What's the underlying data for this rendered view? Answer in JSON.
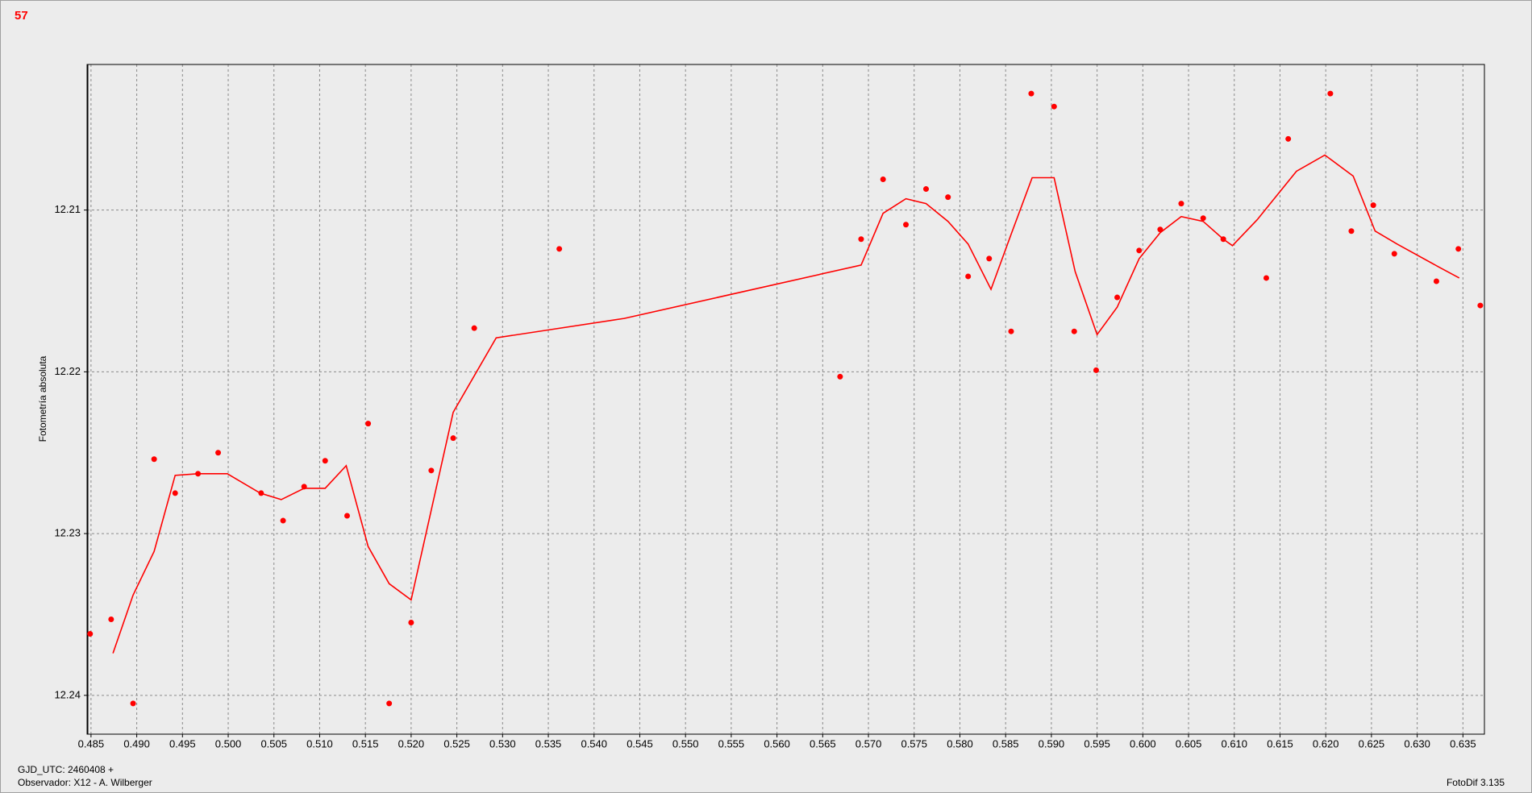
{
  "chart_data": {
    "type": "scatter",
    "title": "57",
    "y_label": "Fotometría absoluta",
    "footer_left": [
      "GJD_UTC: 2460408 +",
      "Observador: X12 - A. Wilberger"
    ],
    "footer_right": "FotoDif 3.135",
    "xlim": [
      0.48457,
      0.63735
    ],
    "ylim": [
      12.2424,
      12.201
    ],
    "xticks": [
      0.485,
      {
        "value": 0.49,
        "label": "0.490"
      },
      0.495,
      {
        "value": 0.5,
        "label": "0.500"
      },
      0.505,
      {
        "value": 0.51,
        "label": "0.510"
      },
      0.515,
      {
        "value": 0.52,
        "label": "0.520"
      },
      0.525,
      {
        "value": 0.53,
        "label": "0.530"
      },
      0.535,
      {
        "value": 0.54,
        "label": "0.540"
      },
      0.545,
      {
        "value": 0.55,
        "label": "0.550"
      },
      0.555,
      {
        "value": 0.56,
        "label": "0.560"
      },
      0.565,
      {
        "value": 0.57,
        "label": "0.570"
      },
      0.575,
      {
        "value": 0.58,
        "label": "0.580"
      },
      0.585,
      {
        "value": 0.59,
        "label": "0.590"
      },
      0.595,
      {
        "value": 0.6,
        "label": "0.600"
      },
      0.605,
      {
        "value": 0.61,
        "label": "0.610"
      },
      0.615,
      {
        "value": 0.62,
        "label": "0.620"
      },
      0.625,
      {
        "value": 0.63,
        "label": "0.630"
      },
      0.635
    ],
    "yticks": [
      12.21,
      12.22,
      12.23,
      12.24
    ],
    "grid": true,
    "series": [
      {
        "type": "scatter",
        "color": "#ff0000",
        "x": [
          0.4849,
          0.4872,
          0.4896,
          0.4919,
          0.4942,
          0.4967,
          0.4989,
          0.5036,
          0.506,
          0.5083,
          0.5106,
          0.513,
          0.5153,
          0.5176,
          0.52,
          0.5222,
          0.5246,
          0.5269,
          0.5362,
          0.5669,
          0.5692,
          0.5716,
          0.5741,
          0.5763,
          0.5787,
          0.5809,
          0.5832,
          0.5856,
          0.5878,
          0.5903,
          0.5925,
          0.5949,
          0.5972,
          0.5996,
          0.6019,
          0.6042,
          0.6066,
          0.6088,
          0.6135,
          0.6159,
          0.6205,
          0.6228,
          0.6252,
          0.6275,
          0.6321,
          0.6345,
          0.6369
        ],
        "values": [
          12.2362,
          12.2353,
          12.2405,
          12.2254,
          12.2275,
          12.2263,
          12.225,
          12.2275,
          12.2292,
          12.2271,
          12.2255,
          12.2289,
          12.2232,
          12.2405,
          12.2355,
          12.2261,
          12.2241,
          12.2173,
          12.2124,
          12.2203,
          12.2118,
          12.2081,
          12.2109,
          12.2087,
          12.2092,
          12.2141,
          12.213,
          12.2175,
          12.2028,
          12.2036,
          12.2175,
          12.2199,
          12.2154,
          12.2125,
          12.2112,
          12.2096,
          12.2105,
          12.2118,
          12.2142,
          12.2056,
          12.2028,
          12.2113,
          12.2097,
          12.2127,
          12.2144,
          12.2124,
          12.2159
        ]
      },
      {
        "type": "line",
        "color": "#ff0000",
        "x": [
          0.4874,
          0.4896,
          0.4919,
          0.4942,
          0.4967,
          0.4999,
          0.5035,
          0.5058,
          0.5083,
          0.5106,
          0.5129,
          0.5153,
          0.5176,
          0.52,
          0.5246,
          0.5293,
          0.5433,
          0.5692,
          0.5716,
          0.5741,
          0.5763,
          0.5787,
          0.5809,
          0.5834,
          0.5856,
          0.5879,
          0.5903,
          0.5926,
          0.595,
          0.5972,
          0.5996,
          0.6019,
          0.6042,
          0.6066,
          0.6088,
          0.6098,
          0.6125,
          0.6168,
          0.6199,
          0.623,
          0.6254,
          0.6278,
          0.6323,
          0.6346
        ],
        "values": [
          12.2374,
          12.2338,
          12.2311,
          12.2264,
          12.2263,
          12.2263,
          12.2275,
          12.2279,
          12.2272,
          12.2272,
          12.2258,
          12.2308,
          12.2331,
          12.2341,
          12.2225,
          12.2179,
          12.2167,
          12.2134,
          12.2102,
          12.2093,
          12.2096,
          12.2107,
          12.2121,
          12.2149,
          12.2115,
          12.208,
          12.208,
          12.2138,
          12.2177,
          12.216,
          12.213,
          12.2114,
          12.2104,
          12.2107,
          12.2118,
          12.2122,
          12.2106,
          12.2076,
          12.2066,
          12.2079,
          12.2113,
          12.2121,
          12.2135,
          12.2142
        ]
      }
    ]
  }
}
